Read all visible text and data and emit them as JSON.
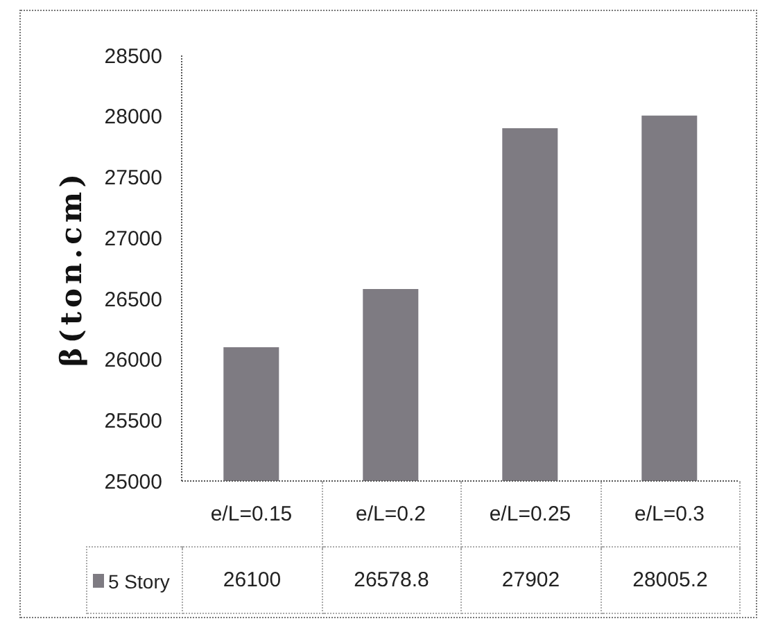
{
  "chart_data": {
    "type": "bar",
    "ylabel": "β(ton.cm)",
    "categories": [
      "e/L=0.15",
      "e/L=0.2",
      "e/L=0.25",
      "e/L=0.3"
    ],
    "series": [
      {
        "name": "5 Story",
        "color": "#7e7b82",
        "values": [
          26100,
          26578.8,
          27902,
          28005.2
        ]
      }
    ],
    "ylim": [
      25000,
      28500
    ],
    "yticks": [
      25000,
      25500,
      26000,
      26500,
      27000,
      27500,
      28000,
      28500
    ],
    "data_labels": true,
    "legend": "bottom left"
  }
}
